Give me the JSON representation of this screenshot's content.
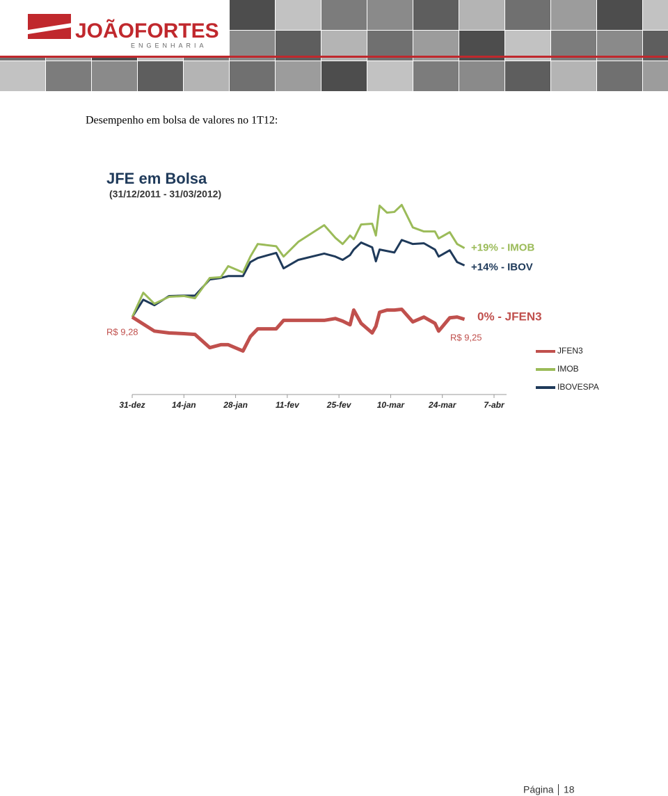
{
  "header": {
    "brand": "JOÃOFORTES",
    "tagline": "ENGENHARIA"
  },
  "heading": "Desempenho em bolsa de valores no 1T12:",
  "chart_data": {
    "type": "line",
    "title": "JFE em Bolsa",
    "subtitle": "(31/12/2011 - 31/03/2012)",
    "x": [
      0,
      3,
      6,
      10,
      14,
      17,
      21,
      24,
      26,
      30,
      32,
      34,
      39,
      41,
      45,
      52,
      55,
      57,
      59,
      60,
      62,
      65,
      66,
      67,
      69,
      71,
      73,
      76,
      79,
      82,
      83,
      86,
      88,
      90
    ],
    "xlim": [
      0,
      98
    ],
    "xticks": [
      {
        "value": 0,
        "label": "31-dez"
      },
      {
        "value": 14,
        "label": "14-jan"
      },
      {
        "value": 28,
        "label": "28-jan"
      },
      {
        "value": 42,
        "label": "11-fev"
      },
      {
        "value": 56,
        "label": "25-fev"
      },
      {
        "value": 70,
        "label": "10-mar"
      },
      {
        "value": 84,
        "label": "24-mar"
      },
      {
        "value": 98,
        "label": "7-abr"
      }
    ],
    "ylim": [
      -21,
      32
    ],
    "series": [
      {
        "name": "JFEN3",
        "color": "#c0504d",
        "end_label": "0% - JFEN3",
        "values": [
          0,
          -1.9,
          -3.8,
          -4.3,
          -4.5,
          -4.7,
          -8.3,
          -7.5,
          -7.5,
          -9.2,
          -5.3,
          -3.2,
          -3.2,
          -0.9,
          -0.9,
          -0.9,
          -0.4,
          -1.1,
          -2.1,
          1.9,
          -1.7,
          -4.3,
          -2.5,
          1.3,
          1.9,
          1.9,
          2.1,
          -1.3,
          0,
          -1.7,
          -3.8,
          -0.2,
          0,
          -0.6
        ]
      },
      {
        "name": "IMOB",
        "color": "#9bbb59",
        "end_label": "+19% - IMOB",
        "values": [
          0,
          6.6,
          3.6,
          5.5,
          5.7,
          5.1,
          10.6,
          10.8,
          13.8,
          12.1,
          16.4,
          19.8,
          19.2,
          16.4,
          20.4,
          24.9,
          21.5,
          19.8,
          22.1,
          21.1,
          25.1,
          25.3,
          22.1,
          30.2,
          28.3,
          28.5,
          30.4,
          24.3,
          23.2,
          23.2,
          21.3,
          23,
          19.8,
          18.7
        ]
      },
      {
        "name": "IBOVESPA",
        "color": "#1f3a5a",
        "end_label": "+14% - IBOV",
        "values": [
          0,
          4.7,
          3.2,
          5.7,
          5.8,
          5.8,
          10.2,
          10.6,
          11.1,
          11.1,
          14.9,
          16,
          17.4,
          13.2,
          15.5,
          17.2,
          16.4,
          15.5,
          16.8,
          18.3,
          20.2,
          18.9,
          15.1,
          18.3,
          17.9,
          17.5,
          20.9,
          19.8,
          20,
          18.3,
          16.4,
          18.1,
          14.9,
          14
        ]
      }
    ],
    "start_price_label": "R$ 9,28",
    "end_price_label": "R$ 9,25"
  },
  "footer": {
    "page_label": "Página",
    "page_number": "18"
  }
}
